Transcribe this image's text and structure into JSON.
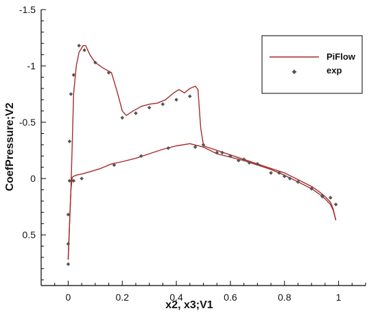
{
  "chart_data": {
    "type": "line",
    "xlabel": "x2, x3;V1",
    "ylabel": "CoefPressure;V2",
    "xlim": [
      -0.1,
      1.1
    ],
    "ylim": [
      0.95,
      -1.5
    ],
    "y_inverted": true,
    "x_ticks": [
      0,
      0.2,
      0.4,
      0.6,
      0.8,
      1
    ],
    "x_tick_labels": [
      "0",
      "0.2",
      "0.4",
      "0.6",
      "0.8",
      "1"
    ],
    "y_ticks": [
      -1.5,
      -1,
      -0.5,
      0,
      0.5
    ],
    "y_tick_labels": [
      "-1.5",
      "-1",
      "-0.5",
      "0",
      "0.5"
    ],
    "grid": false,
    "legend_position": "top-right",
    "colors": {
      "piflow": "#a52a2a",
      "exp": "#555555",
      "axis": "#000000"
    },
    "series": [
      {
        "name": "PiFlow",
        "kind": "line",
        "segments": [
          {
            "part": "suction",
            "x": [
              0.0,
              0.005,
              0.01,
              0.015,
              0.02,
              0.03,
              0.04,
              0.055,
              0.065,
              0.08,
              0.1,
              0.13,
              0.16,
              0.18,
              0.2,
              0.215,
              0.24,
              0.27,
              0.3,
              0.33,
              0.36,
              0.39,
              0.41,
              0.43,
              0.45,
              0.47,
              0.48,
              0.49,
              0.5
            ],
            "y": [
              0.72,
              0.4,
              0.1,
              -0.3,
              -0.75,
              -1.0,
              -1.12,
              -1.18,
              -1.18,
              -1.1,
              -1.03,
              -0.98,
              -0.94,
              -0.78,
              -0.6,
              -0.56,
              -0.6,
              -0.64,
              -0.66,
              -0.67,
              -0.7,
              -0.76,
              -0.79,
              -0.76,
              -0.8,
              -0.82,
              -0.79,
              -0.45,
              -0.3
            ]
          },
          {
            "part": "pressure",
            "x": [
              0.0,
              0.005,
              0.01,
              0.015,
              0.02,
              0.03,
              0.05,
              0.08,
              0.12,
              0.16,
              0.2,
              0.25,
              0.3,
              0.35,
              0.4,
              0.45,
              0.5,
              0.55,
              0.6,
              0.65,
              0.7,
              0.75,
              0.8,
              0.85,
              0.9,
              0.93,
              0.95,
              0.97,
              0.98,
              0.99
            ],
            "y": [
              0.72,
              0.4,
              0.1,
              -0.01,
              -0.02,
              -0.03,
              -0.04,
              -0.06,
              -0.09,
              -0.13,
              -0.15,
              -0.18,
              -0.22,
              -0.26,
              -0.29,
              -0.31,
              -0.28,
              -0.22,
              -0.19,
              -0.16,
              -0.12,
              -0.08,
              -0.03,
              0.03,
              0.09,
              0.14,
              0.18,
              0.23,
              0.28,
              0.37
            ]
          },
          {
            "part": "upper-aft",
            "x": [
              0.5,
              0.55,
              0.6,
              0.65,
              0.7,
              0.75,
              0.8,
              0.85,
              0.9,
              0.93,
              0.95,
              0.97,
              0.98,
              0.99
            ],
            "y": [
              -0.29,
              -0.25,
              -0.21,
              -0.17,
              -0.13,
              -0.09,
              -0.05,
              0.01,
              0.07,
              0.12,
              0.16,
              0.21,
              0.27,
              0.37
            ]
          }
        ]
      },
      {
        "name": "exp",
        "kind": "scatter",
        "x": [
          0.0,
          0.0,
          0.005,
          0.01,
          0.02,
          0.04,
          0.06,
          0.1,
          0.15,
          0.2,
          0.25,
          0.3,
          0.35,
          0.4,
          0.45,
          0.5,
          0.55,
          0.57,
          0.6,
          0.65,
          0.7,
          0.75,
          0.8,
          0.85,
          0.9,
          0.94,
          0.97,
          0.99,
          0.0,
          0.005,
          0.02,
          0.05,
          0.17,
          0.27,
          0.37,
          0.47,
          0.63,
          0.67,
          0.78,
          0.82,
          0.94
        ],
        "y": [
          0.76,
          0.32,
          -0.33,
          -0.75,
          -0.92,
          -1.18,
          -1.14,
          -1.03,
          -0.94,
          -0.54,
          -0.58,
          -0.63,
          -0.66,
          -0.7,
          -0.73,
          -0.3,
          -0.23,
          -0.23,
          -0.2,
          -0.17,
          -0.13,
          -0.05,
          -0.02,
          0.03,
          0.09,
          0.15,
          0.17,
          0.23,
          0.58,
          0.02,
          0.02,
          0.0,
          -0.12,
          -0.2,
          -0.27,
          -0.28,
          -0.16,
          -0.14,
          -0.05,
          0.0,
          0.16
        ]
      }
    ]
  }
}
